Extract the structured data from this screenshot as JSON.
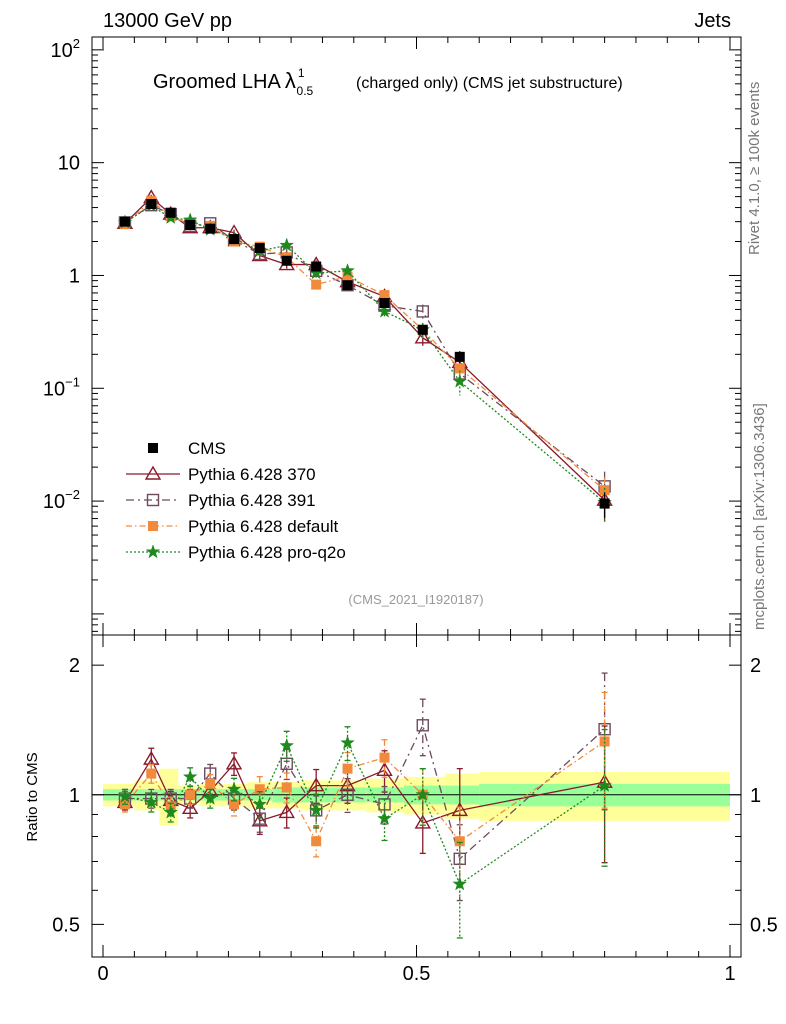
{
  "header": {
    "left": "13000 GeV pp",
    "right": "Jets"
  },
  "side_labels": {
    "rivet": "Rivet 4.1.0, ≥ 100k events",
    "mcplots": "mcplots.cern.ch [arXiv:1306.3436]"
  },
  "chart_data": {
    "type": "line",
    "title": "Groomed LHA",
    "title_symbol": "λ",
    "title_sup": "1",
    "title_sub": "0.5",
    "title_suffix": "(charged only) (CMS jet substructure)",
    "analysis_id": "(CMS_2021_I1920187)",
    "xlabel": "",
    "ylabel_ratio": "Ratio to CMS",
    "xlim": [
      0,
      1
    ],
    "ylim_main": [
      0.00065,
      130
    ],
    "ylim_ratio": [
      0.42,
      2.35
    ],
    "x_ticks": [
      {
        "v": 0,
        "label": "0"
      },
      {
        "v": 0.5,
        "label": "0.5"
      },
      {
        "v": 1,
        "label": "1"
      }
    ],
    "y_ticks_main": [
      {
        "v": 0.01,
        "base": "10",
        "exp": "−2"
      },
      {
        "v": 0.1,
        "base": "10",
        "exp": "−1"
      },
      {
        "v": 1,
        "base": "1",
        "exp": ""
      },
      {
        "v": 10,
        "base": "10",
        "exp": ""
      },
      {
        "v": 100,
        "base": "10",
        "exp": "2"
      }
    ],
    "y_ticks_ratio": [
      {
        "v": 0.5,
        "label": "0.5"
      },
      {
        "v": 1,
        "label": "1"
      },
      {
        "v": 2,
        "label": "2"
      }
    ],
    "bins": [
      [
        0.0,
        0.05
      ],
      [
        0.05,
        0.09
      ],
      [
        0.09,
        0.12
      ],
      [
        0.12,
        0.155
      ],
      [
        0.155,
        0.19
      ],
      [
        0.19,
        0.23
      ],
      [
        0.23,
        0.27
      ],
      [
        0.27,
        0.315
      ],
      [
        0.315,
        0.365
      ],
      [
        0.365,
        0.42
      ],
      [
        0.42,
        0.48
      ],
      [
        0.48,
        0.545
      ],
      [
        0.545,
        0.6
      ],
      [
        0.6,
        1.0
      ]
    ],
    "x": [
      0.035,
      0.077,
      0.108,
      0.139,
      0.171,
      0.209,
      0.25,
      0.293,
      0.34,
      0.39,
      0.449,
      0.51,
      0.569,
      0.8
    ],
    "series": [
      {
        "name": "CMS",
        "color": "#000000",
        "marker": "square-filled",
        "dash": "none",
        "values": [
          3.0,
          4.3,
          3.6,
          2.8,
          2.6,
          2.1,
          1.75,
          1.35,
          1.2,
          0.82,
          0.57,
          0.33,
          0.19,
          0.0095
        ],
        "ratio": [
          1,
          1,
          1,
          1,
          1,
          1,
          1,
          1,
          1,
          1,
          1,
          1,
          1,
          1
        ],
        "err": [
          0.02,
          0.03,
          0.04,
          0.04,
          0.04,
          0.05,
          0.05,
          0.06,
          0.07,
          0.08,
          0.09,
          0.1,
          0.12,
          0.25
        ],
        "band_stat": [
          0.03,
          0.03,
          0.03,
          0.03,
          0.03,
          0.03,
          0.03,
          0.04,
          0.04,
          0.04,
          0.04,
          0.05,
          0.05,
          0.06
        ],
        "band_tot": [
          0.06,
          0.08,
          0.15,
          0.05,
          0.06,
          0.06,
          0.07,
          0.07,
          0.08,
          0.08,
          0.09,
          0.1,
          0.12,
          0.13
        ]
      },
      {
        "name": "Pythia 6.428 370",
        "color": "#8b1a2b",
        "marker": "triangle-open",
        "dash": "none",
        "values": [
          2.9,
          4.9,
          3.5,
          2.65,
          2.65,
          2.4,
          1.5,
          1.25,
          1.25,
          0.88,
          0.65,
          0.28,
          0.17,
          0.0102
        ],
        "ratio": [
          0.96,
          1.21,
          0.97,
          0.93,
          1.02,
          1.18,
          0.87,
          0.91,
          1.05,
          1.05,
          1.14,
          0.86,
          0.92,
          1.07
        ],
        "err": [
          0.04,
          0.06,
          0.05,
          0.05,
          0.05,
          0.06,
          0.07,
          0.08,
          0.09,
          0.09,
          0.11,
          0.15,
          0.25,
          0.35
        ]
      },
      {
        "name": "Pythia 6.428 391",
        "color": "#6e4a5e",
        "marker": "square-open",
        "dash": "8,4,2,4",
        "values": [
          2.95,
          4.2,
          3.5,
          2.75,
          2.9,
          2.05,
          1.55,
          1.6,
          1.1,
          0.82,
          0.54,
          0.48,
          0.135,
          0.0135
        ],
        "ratio": [
          0.98,
          0.98,
          0.98,
          0.98,
          1.12,
          0.98,
          0.88,
          1.18,
          0.92,
          1.0,
          0.95,
          1.45,
          0.71,
          1.42
        ],
        "err": [
          0.04,
          0.05,
          0.05,
          0.05,
          0.05,
          0.06,
          0.07,
          0.08,
          0.08,
          0.09,
          0.1,
          0.15,
          0.2,
          0.35
        ]
      },
      {
        "name": "Pythia 6.428 default",
        "color": "#f28a3c",
        "marker": "square-filled",
        "dash": "6,3,1.5,3",
        "values": [
          2.85,
          4.6,
          3.35,
          2.85,
          2.75,
          2.0,
          1.8,
          1.45,
          0.83,
          0.98,
          0.67,
          0.33,
          0.15,
          0.0125
        ],
        "ratio": [
          0.95,
          1.12,
          0.94,
          1.0,
          1.06,
          0.95,
          1.03,
          1.04,
          0.78,
          1.15,
          1.22,
          1.0,
          0.78,
          1.33
        ],
        "err": [
          0.04,
          0.05,
          0.05,
          0.05,
          0.05,
          0.06,
          0.07,
          0.08,
          0.08,
          0.09,
          0.1,
          0.15,
          0.2,
          0.3
        ]
      },
      {
        "name": "Pythia 6.428 pro-q2o",
        "color": "#1e8a1e",
        "marker": "star",
        "dash": "2,2",
        "values": [
          2.95,
          4.15,
          3.25,
          3.1,
          2.55,
          2.15,
          1.65,
          1.85,
          1.05,
          1.1,
          0.48,
          0.33,
          0.115,
          0.0097
        ],
        "ratio": [
          0.99,
          0.96,
          0.91,
          1.1,
          0.98,
          1.03,
          0.95,
          1.3,
          0.92,
          1.32,
          0.88,
          1.0,
          0.62,
          1.05
        ],
        "err": [
          0.04,
          0.05,
          0.05,
          0.05,
          0.05,
          0.06,
          0.07,
          0.08,
          0.09,
          0.09,
          0.11,
          0.15,
          0.25,
          0.35
        ]
      }
    ]
  }
}
